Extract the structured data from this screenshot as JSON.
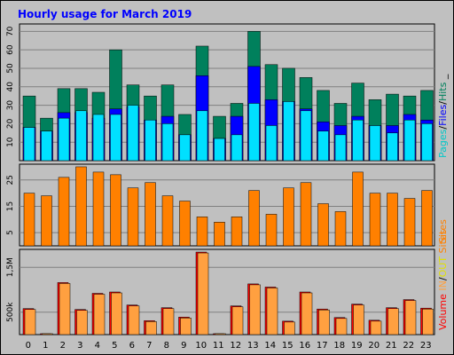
{
  "title": "Hourly usage for March 2019",
  "chart_data": [
    {
      "type": "bar",
      "panel": "top",
      "categories": [
        "0",
        "1",
        "2",
        "3",
        "4",
        "5",
        "6",
        "7",
        "8",
        "9",
        "10",
        "11",
        "12",
        "13",
        "14",
        "15",
        "16",
        "17",
        "18",
        "19",
        "20",
        "21",
        "22",
        "23"
      ],
      "series": [
        {
          "name": "Hits",
          "color": "#00805c",
          "values": [
            35,
            23,
            39,
            39,
            37,
            60,
            41,
            35,
            41,
            25,
            62,
            24,
            31,
            70,
            52,
            50,
            45,
            38,
            31,
            42,
            33,
            36,
            35,
            38
          ]
        },
        {
          "name": "Files",
          "color": "#0000ff",
          "values": [
            18,
            16,
            26,
            26,
            23,
            28,
            29,
            22,
            24,
            14,
            46,
            12,
            24,
            51,
            33,
            32,
            28,
            21,
            19,
            24,
            19,
            19,
            25,
            22
          ]
        },
        {
          "name": "Pages",
          "color": "#00e0ff",
          "values": [
            18,
            16,
            23,
            27,
            25,
            25,
            30,
            22,
            20,
            14,
            27,
            12,
            14,
            31,
            19,
            32,
            27,
            16,
            14,
            22,
            19,
            15,
            22,
            20
          ]
        }
      ],
      "yticks": [
        10,
        20,
        30,
        40,
        50,
        60,
        70
      ],
      "ylim": [
        0,
        74
      ],
      "legend": [
        "Pages",
        "/",
        "Files",
        "/",
        "Hits",
        "_"
      ],
      "legend_colors": [
        "#00c8c8",
        "#000000",
        "#0000ff",
        "#000000",
        "#00805c",
        "#000000"
      ]
    },
    {
      "type": "bar",
      "panel": "middle",
      "categories": [
        "0",
        "1",
        "2",
        "3",
        "4",
        "5",
        "6",
        "7",
        "8",
        "9",
        "10",
        "11",
        "12",
        "13",
        "14",
        "15",
        "16",
        "17",
        "18",
        "19",
        "20",
        "21",
        "22",
        "23"
      ],
      "series": [
        {
          "name": "Sites",
          "color": "#ff8000",
          "values": [
            20,
            19,
            26,
            30,
            28,
            27,
            22,
            24,
            19,
            17,
            11,
            9,
            11,
            21,
            12,
            22,
            24,
            16,
            13,
            28,
            20,
            20,
            18,
            21
          ]
        }
      ],
      "yticks": [
        5,
        15,
        25
      ],
      "ylim": [
        0,
        31
      ],
      "legend": [
        "Sites"
      ],
      "legend_colors": [
        "#ff8000"
      ]
    },
    {
      "type": "bar",
      "panel": "bottom",
      "categories": [
        "0",
        "1",
        "2",
        "3",
        "4",
        "5",
        "6",
        "7",
        "8",
        "9",
        "10",
        "11",
        "12",
        "13",
        "14",
        "15",
        "16",
        "17",
        "18",
        "19",
        "20",
        "21",
        "22",
        "23"
      ],
      "series": [
        {
          "name": "Volume",
          "color": "#ff0000",
          "values": [
            580000,
            20000,
            1160000,
            560000,
            920000,
            950000,
            660000,
            310000,
            600000,
            390000,
            1840000,
            20000,
            640000,
            1130000,
            1060000,
            300000,
            950000,
            570000,
            380000,
            680000,
            320000,
            600000,
            780000,
            590000
          ]
        },
        {
          "name": "IN",
          "color": "#ffa040",
          "values": [
            560000,
            20000,
            1140000,
            540000,
            900000,
            930000,
            640000,
            290000,
            580000,
            370000,
            1820000,
            20000,
            620000,
            1110000,
            1040000,
            280000,
            930000,
            550000,
            360000,
            660000,
            300000,
            580000,
            760000,
            570000
          ]
        }
      ],
      "yticks": [
        500000,
        1500000
      ],
      "ytick_labels": [
        "500k",
        "1,5M"
      ],
      "ylim": [
        0,
        1900000
      ],
      "legend": [
        "Volume",
        "IN",
        "/",
        "OUT",
        "Sites"
      ],
      "legend_colors": [
        "#ff0000",
        "#ffa040",
        "#000000",
        "#e0e000",
        "#ff8000"
      ]
    }
  ],
  "colors": {
    "frame_bg": "#c0c0c0",
    "plot_bg": "#c0c0c0",
    "grid": "#808080",
    "title": "#0000ff"
  }
}
